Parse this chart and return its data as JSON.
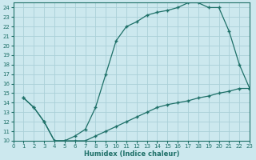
{
  "xlabel": "Humidex (Indice chaleur)",
  "bg_color": "#cce8ee",
  "grid_color": "#aacfd8",
  "line_color": "#1e7068",
  "xlim": [
    0,
    23
  ],
  "ylim": [
    10,
    24.5
  ],
  "xticks": [
    0,
    1,
    2,
    3,
    4,
    5,
    6,
    7,
    8,
    9,
    10,
    11,
    12,
    13,
    14,
    15,
    16,
    17,
    18,
    19,
    20,
    21,
    22,
    23
  ],
  "yticks": [
    10,
    11,
    12,
    13,
    14,
    15,
    16,
    17,
    18,
    19,
    20,
    21,
    22,
    23,
    24
  ],
  "line1_x": [
    1,
    2,
    3,
    4,
    5,
    6,
    7,
    8,
    9,
    10,
    11,
    12,
    13,
    14,
    15,
    16,
    17,
    18,
    19,
    20,
    21,
    22,
    23
  ],
  "line1_y": [
    14.5,
    13.5,
    12.0,
    10.0,
    10.0,
    10.5,
    11.2,
    13.5,
    17.0,
    20.5,
    22.0,
    22.5,
    23.2,
    23.5,
    23.7,
    24.0,
    24.5,
    24.5,
    24.0,
    24.0,
    21.5,
    18.0,
    15.5
  ],
  "line2_x": [
    1,
    2,
    3,
    4,
    5,
    6,
    7,
    8,
    9,
    10,
    11,
    12,
    13,
    14,
    15,
    16,
    17,
    18,
    19,
    20,
    21,
    22,
    23
  ],
  "line2_y": [
    14.5,
    13.5,
    12.0,
    10.0,
    10.0,
    10.0,
    10.0,
    10.5,
    11.0,
    11.5,
    12.0,
    12.5,
    13.0,
    13.5,
    13.8,
    14.0,
    14.2,
    14.5,
    14.7,
    15.0,
    15.2,
    15.5,
    15.5
  ]
}
